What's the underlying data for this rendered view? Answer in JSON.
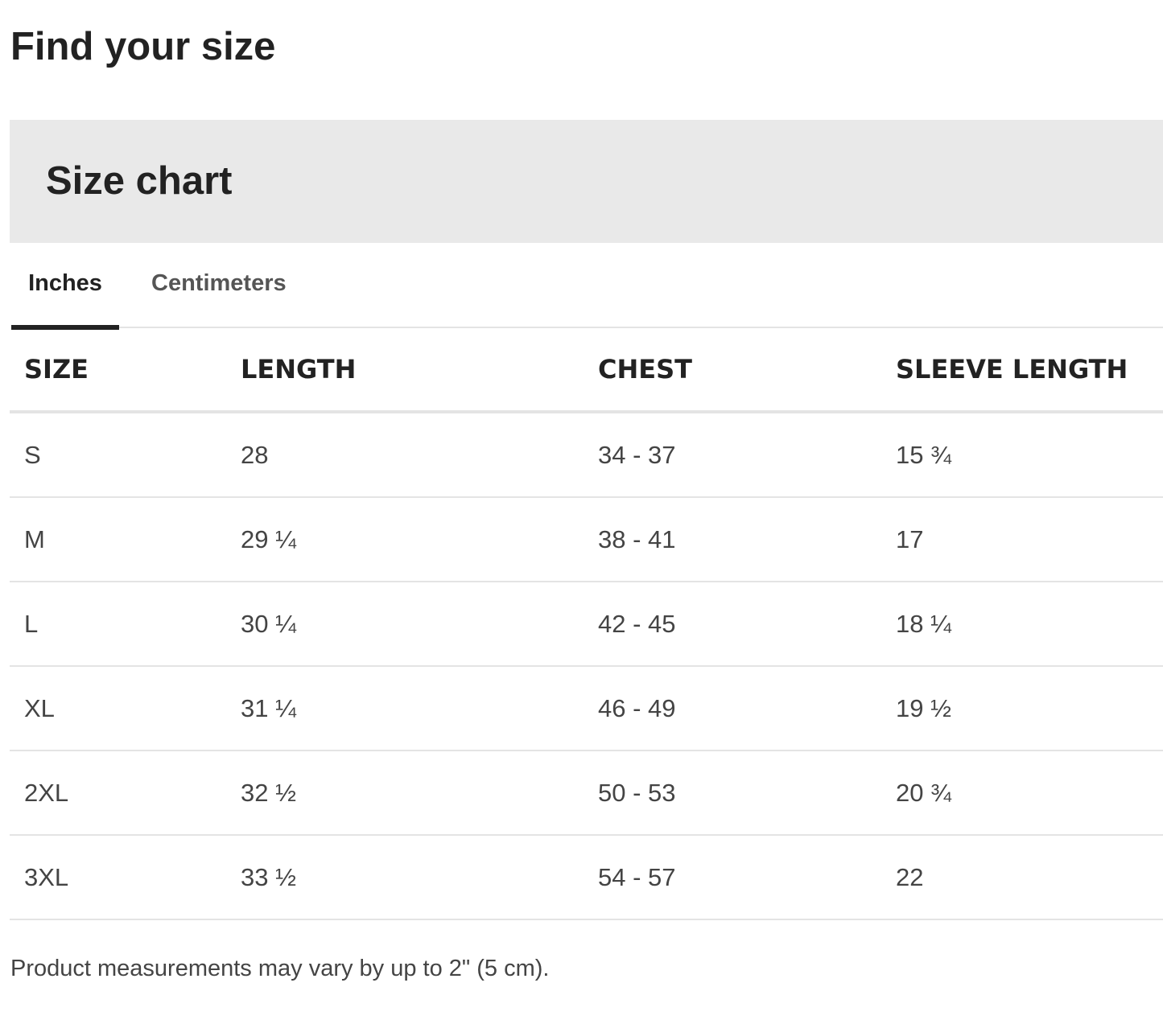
{
  "page_title": "Find your size",
  "panel_title": "Size chart",
  "tabs": [
    {
      "label": "Inches",
      "active": true
    },
    {
      "label": "Centimeters",
      "active": false
    }
  ],
  "table": {
    "headers": [
      "SIZE",
      "LENGTH",
      "CHEST",
      "SLEEVE LENGTH"
    ],
    "rows": [
      [
        "S",
        "28",
        "34 - 37",
        "15 ¾"
      ],
      [
        "M",
        "29 ¼",
        "38 - 41",
        "17"
      ],
      [
        "L",
        "30 ¼",
        "42 - 45",
        "18 ¼"
      ],
      [
        "XL",
        "31 ¼",
        "46 - 49",
        "19 ½"
      ],
      [
        "2XL",
        "32 ½",
        "50 - 53",
        "20 ¾"
      ],
      [
        "3XL",
        "33 ½",
        "54 - 57",
        "22"
      ]
    ]
  },
  "note": "Product measurements may vary by up to 2\" (5 cm)."
}
